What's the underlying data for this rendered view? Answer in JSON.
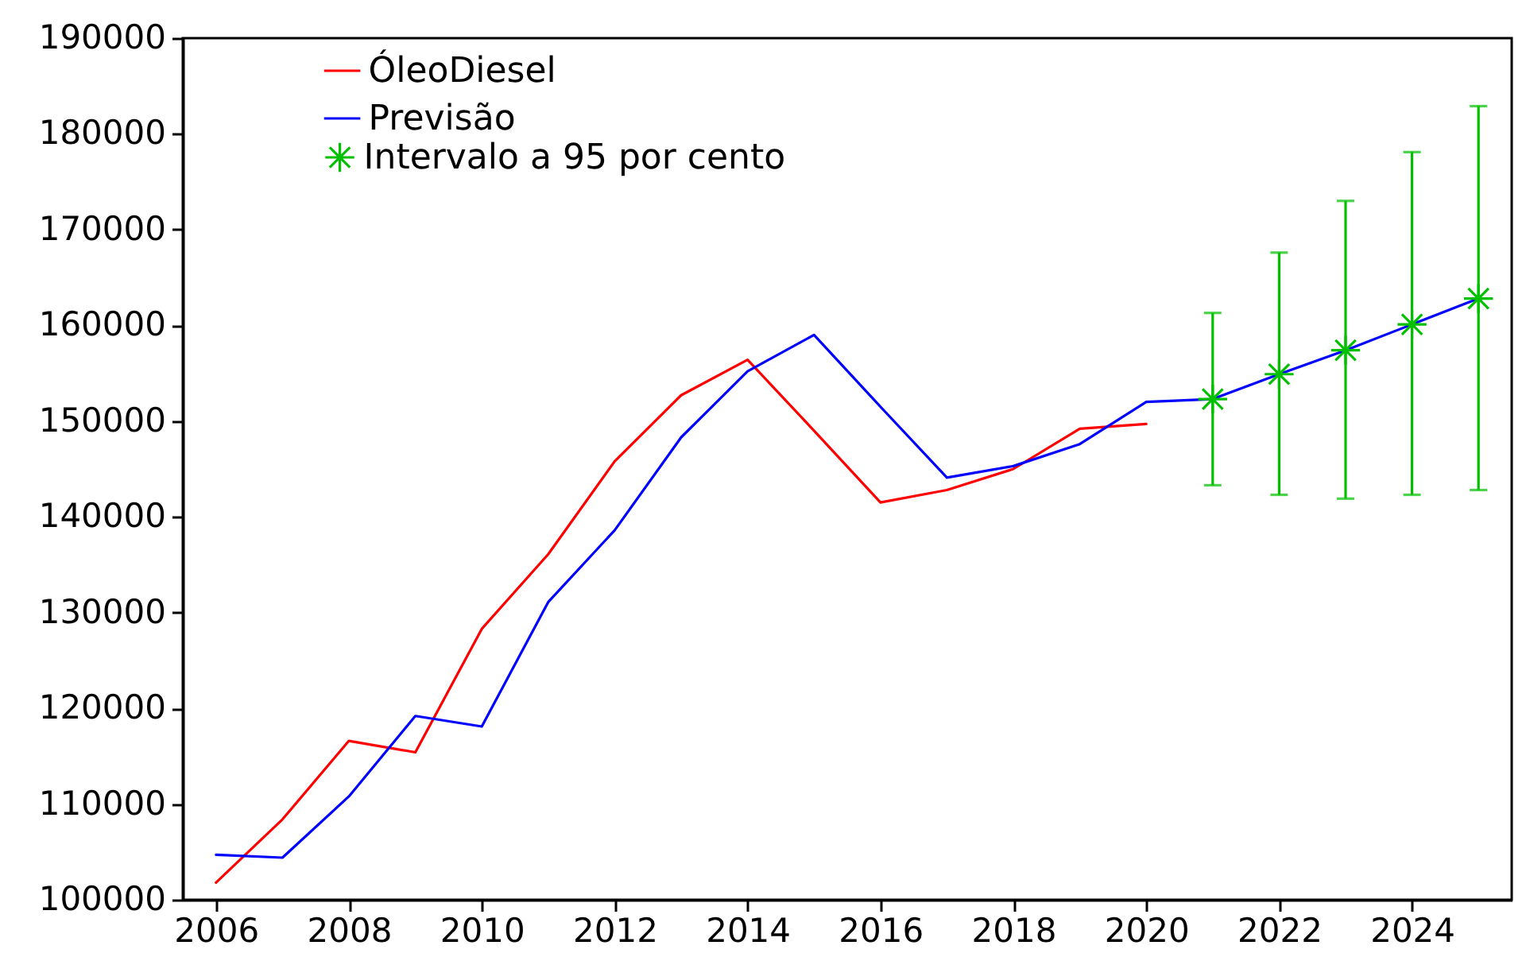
{
  "chart_data": {
    "type": "line",
    "legend": "top",
    "xlim": [
      2005.5,
      2025.5
    ],
    "xticks": [
      2006,
      2008,
      2010,
      2012,
      2014,
      2016,
      2018,
      2020,
      2022,
      2024
    ],
    "ylim": [
      100000,
      190000
    ],
    "yticks": [
      100000,
      110000,
      120000,
      130000,
      140000,
      150000,
      160000,
      170000,
      180000,
      190000
    ],
    "series": [
      {
        "name": "ÓleoDiesel",
        "color": "#ff0000",
        "x": [
          2006,
          2007,
          2008,
          2009,
          2010,
          2011,
          2012,
          2013,
          2014,
          2015,
          2016,
          2017,
          2018,
          2019,
          2020
        ],
        "values": [
          101800,
          108400,
          116600,
          115400,
          128300,
          136100,
          145800,
          152700,
          156400,
          149000,
          141500,
          142800,
          145000,
          149200,
          149700
        ]
      },
      {
        "name": "Previsão",
        "color": "#0000ff",
        "x": [
          2006,
          2007,
          2008,
          2009,
          2010,
          2011,
          2012,
          2013,
          2014,
          2015,
          2016,
          2017,
          2018,
          2019,
          2020,
          2021,
          2022,
          2023,
          2024,
          2025
        ],
        "values": [
          104700,
          104400,
          110800,
          119200,
          118100,
          131100,
          138600,
          148300,
          155200,
          159000,
          151500,
          144100,
          145300,
          147600,
          152000,
          152300,
          154900,
          157400,
          160100,
          162800
        ]
      },
      {
        "name": "Intervalo a 95 por cento",
        "type": "scatter",
        "marker": "cross",
        "color": "#00c000",
        "x": [
          2021,
          2022,
          2023,
          2024,
          2025
        ],
        "values": [
          152300,
          154900,
          157400,
          160100,
          162800
        ],
        "errors": [
          [
            143300,
            161300
          ],
          [
            142300,
            167600
          ],
          [
            141900,
            173000
          ],
          [
            142300,
            178100
          ],
          [
            142800,
            182900
          ]
        ]
      }
    ]
  }
}
